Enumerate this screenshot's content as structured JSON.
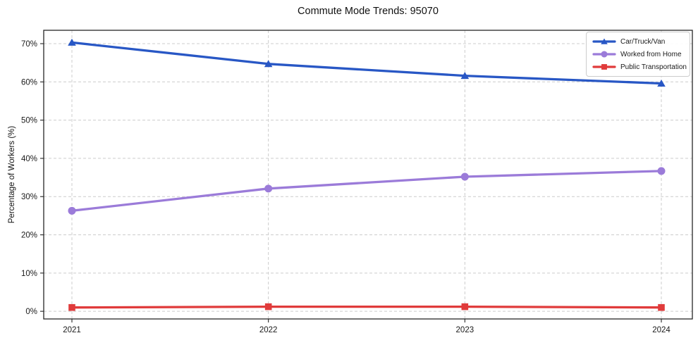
{
  "chart_data": {
    "type": "line",
    "title": "Commute Mode Trends: 95070",
    "xlabel": "",
    "ylabel": "Percentage of Workers (%)",
    "categories": [
      "2021",
      "2022",
      "2023",
      "2024"
    ],
    "series": [
      {
        "name": "Car/Truck/Van",
        "color": "#2857c5",
        "marker": "triangle",
        "values": [
          70.3,
          64.7,
          61.6,
          59.6
        ]
      },
      {
        "name": "Worked from Home",
        "color": "#9b7bd9",
        "marker": "circle",
        "values": [
          26.3,
          32.1,
          35.2,
          36.7
        ]
      },
      {
        "name": "Public Transportation",
        "color": "#e03b3b",
        "marker": "square",
        "values": [
          1.0,
          1.2,
          1.2,
          1.0
        ]
      }
    ],
    "yticks": [
      0,
      10,
      20,
      30,
      40,
      50,
      60,
      70
    ],
    "ytick_labels": [
      "0%",
      "10%",
      "20%",
      "30%",
      "40%",
      "50%",
      "60%",
      "70%"
    ],
    "ylim": [
      -2,
      73.5
    ],
    "grid": true,
    "legend_position": "upper-right",
    "colors": {
      "grid": "#cccccc",
      "frame": "#262626",
      "text": "#1a1a1a",
      "legend_border": "#cccccc"
    }
  }
}
